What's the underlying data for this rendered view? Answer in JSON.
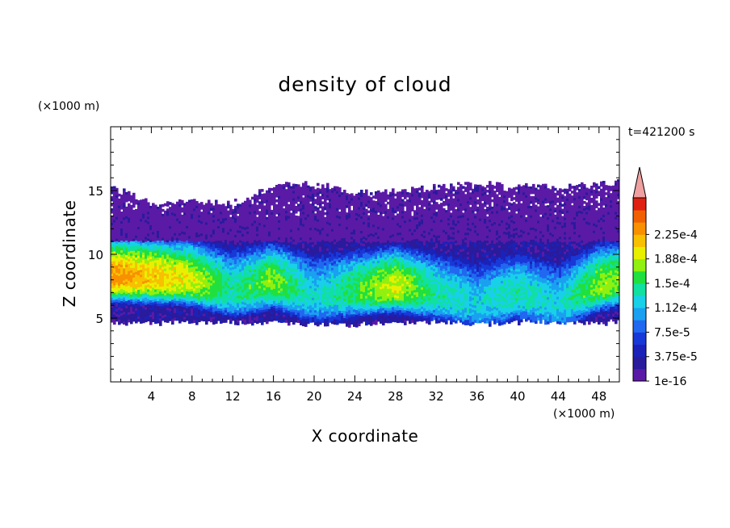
{
  "chart_data": {
    "type": "heatmap",
    "title": "density of cloud",
    "xlabel": "X coordinate",
    "ylabel": "Z coordinate",
    "x_units": "(×1000 m)",
    "y_units": "(×1000 m)",
    "time_label": "t=421200 s",
    "xlim": [
      0,
      50
    ],
    "ylim": [
      0,
      20
    ],
    "x_ticks": [
      4,
      8,
      12,
      16,
      20,
      24,
      28,
      32,
      36,
      40,
      44,
      48
    ],
    "y_ticks": [
      5,
      10,
      15
    ],
    "colorbar": {
      "labels": [
        "1e-16",
        "3.75e-5",
        "7.5e-5",
        "1.12e-4",
        "1.5e-4",
        "1.88e-4",
        "2.25e-4"
      ],
      "colors": [
        "#5a1aa6",
        "#2a1a9c",
        "#1a22b8",
        "#1838d8",
        "#2068f0",
        "#1aa0f0",
        "#18d0e8",
        "#10e0a0",
        "#20e040",
        "#90f010",
        "#e8f000",
        "#f8c000",
        "#f89000",
        "#f06000",
        "#e02010",
        "#f0a0a0"
      ],
      "extend": "max"
    },
    "cloud_layer_km": {
      "x": [
        0,
        4,
        8,
        12,
        16,
        20,
        24,
        28,
        32,
        36,
        40,
        44,
        48,
        50
      ],
      "top": [
        15.3,
        14.0,
        14.2,
        14.0,
        15.3,
        15.6,
        14.8,
        15.0,
        15.3,
        15.5,
        15.4,
        15.2,
        15.5,
        15.6
      ],
      "bottom": [
        4.8,
        4.8,
        4.8,
        4.7,
        4.8,
        4.6,
        4.6,
        4.7,
        4.8,
        4.7,
        4.8,
        4.8,
        4.7,
        4.8
      ],
      "peak_core_z": [
        8.2,
        8.1,
        7.9,
        7.0,
        7.7,
        6.6,
        7.0,
        7.4,
        6.8,
        6.0,
        6.8,
        6.0,
        7.5,
        7.8
      ],
      "peak_level_index": [
        11,
        10,
        9,
        6,
        8,
        5,
        7,
        9,
        6,
        5,
        6,
        5,
        8,
        8
      ]
    }
  }
}
